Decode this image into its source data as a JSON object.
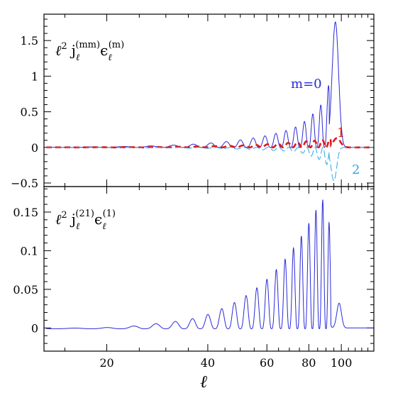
{
  "chart_data": [
    {
      "type": "line",
      "panel": "top",
      "title_parts": {
        "main": "ℓ",
        "sup1": "2",
        "j": "j",
        "sub1": "ℓ",
        "sup2": "(mm)",
        "eps": "ϵ",
        "sub2": "ℓ",
        "sup3": "(m)"
      },
      "xscale": "log",
      "xlim": [
        13,
        125
      ],
      "ylim": [
        -0.55,
        1.87
      ],
      "yticks": [
        -0.5,
        0,
        0.5,
        1,
        1.5
      ],
      "ytick_labels": [
        "−0.5",
        "0",
        "0.5",
        "1",
        "1.5"
      ],
      "series": [
        {
          "name": "m=0",
          "color": "#2a2ad8",
          "style": "solid",
          "peak_x": [
            72,
            76.5,
            81,
            86,
            91,
            96
          ],
          "peak_y": [
            0.27,
            0.34,
            0.44,
            0.56,
            0.77,
            1.76
          ]
        },
        {
          "name": "1",
          "color": "#e01818",
          "style": "dashed",
          "peak_x": [
            72,
            76.5,
            81,
            86,
            91,
            97
          ],
          "peak_y": [
            0.07,
            0.08,
            0.09,
            0.1,
            0.11,
            0.13
          ]
        },
        {
          "name": "2",
          "color": "#2aa8e6",
          "style": "dashed",
          "peak_x": [
            72,
            76.5,
            81,
            86,
            91,
            95
          ],
          "peak_y": [
            -0.06,
            -0.08,
            -0.12,
            -0.17,
            -0.25,
            -0.47
          ]
        }
      ]
    },
    {
      "type": "line",
      "panel": "bottom",
      "title_parts": {
        "main": "ℓ",
        "sup1": "2",
        "j": "j",
        "sub1": "ℓ",
        "sup2": "(21)",
        "eps": "ϵ",
        "sub2": "ℓ",
        "sup3": "(1)"
      },
      "xscale": "log",
      "xlim": [
        13,
        125
      ],
      "ylim": [
        -0.03,
        0.183
      ],
      "yticks": [
        0,
        0.05,
        0.1,
        0.15
      ],
      "ytick_labels": [
        "0",
        "0.05",
        "0.1",
        "0.15"
      ],
      "xticks": [
        20,
        40,
        60,
        80,
        100
      ],
      "xtick_labels": [
        "20",
        "40",
        "60",
        "80",
        "100"
      ],
      "xlabel": "ℓ",
      "series": [
        {
          "name": "",
          "color": "#2a2ad8",
          "style": "solid",
          "peak_x": [
            22,
            26,
            30,
            34,
            38,
            42,
            46,
            50,
            54,
            58,
            62,
            66,
            70,
            74,
            78,
            82,
            86,
            90,
            98
          ],
          "peak_y": [
            0.002,
            0.005,
            0.008,
            0.011,
            0.015,
            0.022,
            0.03,
            0.038,
            0.048,
            0.058,
            0.07,
            0.083,
            0.097,
            0.112,
            0.128,
            0.145,
            0.162,
            0.172,
            0.032
          ]
        }
      ]
    }
  ]
}
